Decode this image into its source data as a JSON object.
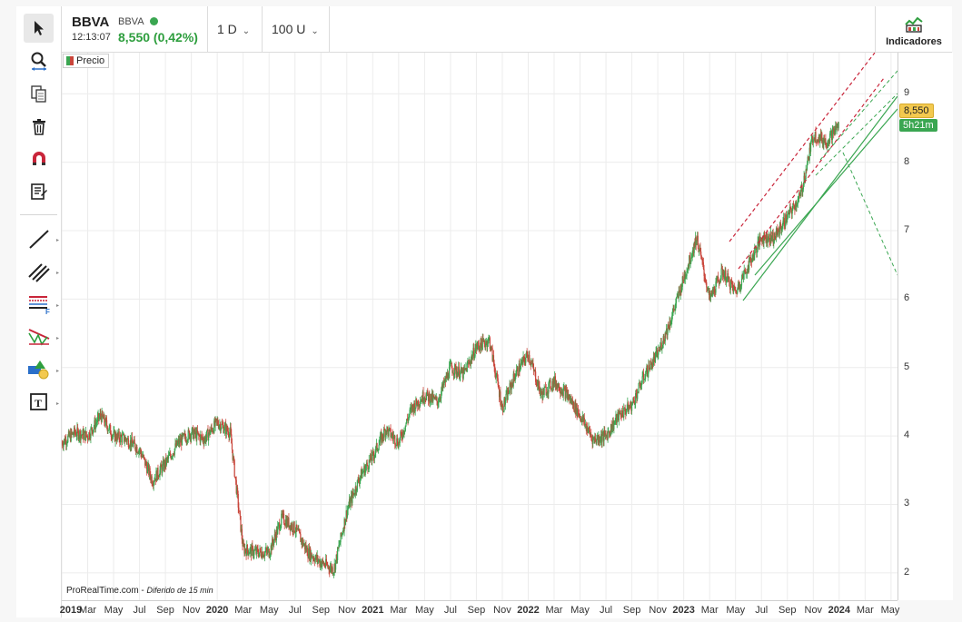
{
  "header": {
    "symbol": "BBVA",
    "symbol_small": "BBVA",
    "time": "12:13:07",
    "price_change": "8,550 (0,42%)",
    "timeframe": "1 D",
    "units": "100 U",
    "indicators_label": "Indicadores"
  },
  "toolbar": {
    "icons": [
      "cursor-icon",
      "zoom-icon",
      "copy-icon",
      "trash-icon",
      "magnet-icon",
      "list-icon",
      "line-icon",
      "parallel-lines-icon",
      "fibonacci-icon",
      "pattern-icon",
      "shapes-icon",
      "text-icon"
    ]
  },
  "legend": {
    "label": "Precio"
  },
  "attribution": {
    "text": "ProRealTime.com",
    "delay": "Diferido de 15 min"
  },
  "price_tag": "8,550",
  "timer_tag": "5h21m",
  "colors": {
    "up": "#3aa651",
    "down": "#c9453a",
    "accent_price": "#f3c94f",
    "live": "#3aa651"
  },
  "chart_data": {
    "type": "candlestick",
    "y_ticks": [
      "2",
      "3",
      "4",
      "5",
      "6",
      "7",
      "8",
      "9"
    ],
    "x_ticks": [
      "2019",
      "Mar",
      "May",
      "Jul",
      "Sep",
      "Nov",
      "2020",
      "Mar",
      "May",
      "Jul",
      "Sep",
      "Nov",
      "2021",
      "Mar",
      "May",
      "Jul",
      "Sep",
      "Nov",
      "2022",
      "Mar",
      "May",
      "Jul",
      "Sep",
      "Nov",
      "2023",
      "Mar",
      "May",
      "Jul",
      "Sep",
      "Nov",
      "2024",
      "Mar",
      "May"
    ],
    "ylim": [
      1.6,
      9.6
    ],
    "grid": true,
    "series_close": [
      [
        "2019-01",
        3.9
      ],
      [
        "2019-02",
        4.05
      ],
      [
        "2019-03",
        4.0
      ],
      [
        "2019-04",
        4.3
      ],
      [
        "2019-05",
        4.0
      ],
      [
        "2019-06",
        3.95
      ],
      [
        "2019-07",
        3.8
      ],
      [
        "2019-08",
        3.35
      ],
      [
        "2019-09",
        3.6
      ],
      [
        "2019-10",
        3.9
      ],
      [
        "2019-11",
        4.05
      ],
      [
        "2019-12",
        3.95
      ],
      [
        "2020-01",
        4.2
      ],
      [
        "2020-02",
        4.05
      ],
      [
        "2020-03",
        2.35
      ],
      [
        "2020-04",
        2.3
      ],
      [
        "2020-05",
        2.3
      ],
      [
        "2020-06",
        2.8
      ],
      [
        "2020-07",
        2.65
      ],
      [
        "2020-08",
        2.3
      ],
      [
        "2020-09",
        2.15
      ],
      [
        "2020-10",
        2.05
      ],
      [
        "2020-11",
        2.9
      ],
      [
        "2020-12",
        3.4
      ],
      [
        "2021-01",
        3.7
      ],
      [
        "2021-02",
        4.1
      ],
      [
        "2021-03",
        3.9
      ],
      [
        "2021-04",
        4.4
      ],
      [
        "2021-05",
        4.6
      ],
      [
        "2021-06",
        4.5
      ],
      [
        "2021-07",
        5.0
      ],
      [
        "2021-08",
        4.9
      ],
      [
        "2021-09",
        5.3
      ],
      [
        "2021-10",
        5.4
      ],
      [
        "2021-11",
        4.4
      ],
      [
        "2021-12",
        4.9
      ],
      [
        "2022-01",
        5.2
      ],
      [
        "2022-02",
        4.6
      ],
      [
        "2022-03",
        4.8
      ],
      [
        "2022-04",
        4.6
      ],
      [
        "2022-05",
        4.3
      ],
      [
        "2022-06",
        3.95
      ],
      [
        "2022-07",
        4.0
      ],
      [
        "2022-08",
        4.3
      ],
      [
        "2022-09",
        4.45
      ],
      [
        "2022-10",
        4.9
      ],
      [
        "2022-11",
        5.2
      ],
      [
        "2022-12",
        5.7
      ],
      [
        "2023-01",
        6.3
      ],
      [
        "2023-02",
        6.9
      ],
      [
        "2023-03",
        6.0
      ],
      [
        "2023-04",
        6.4
      ],
      [
        "2023-05",
        6.1
      ],
      [
        "2023-06",
        6.5
      ],
      [
        "2023-07",
        6.9
      ],
      [
        "2023-08",
        6.9
      ],
      [
        "2023-09",
        7.2
      ],
      [
        "2023-10",
        7.5
      ],
      [
        "2023-11",
        8.4
      ],
      [
        "2023-12",
        8.3
      ],
      [
        "2024-01",
        8.55
      ]
    ]
  }
}
